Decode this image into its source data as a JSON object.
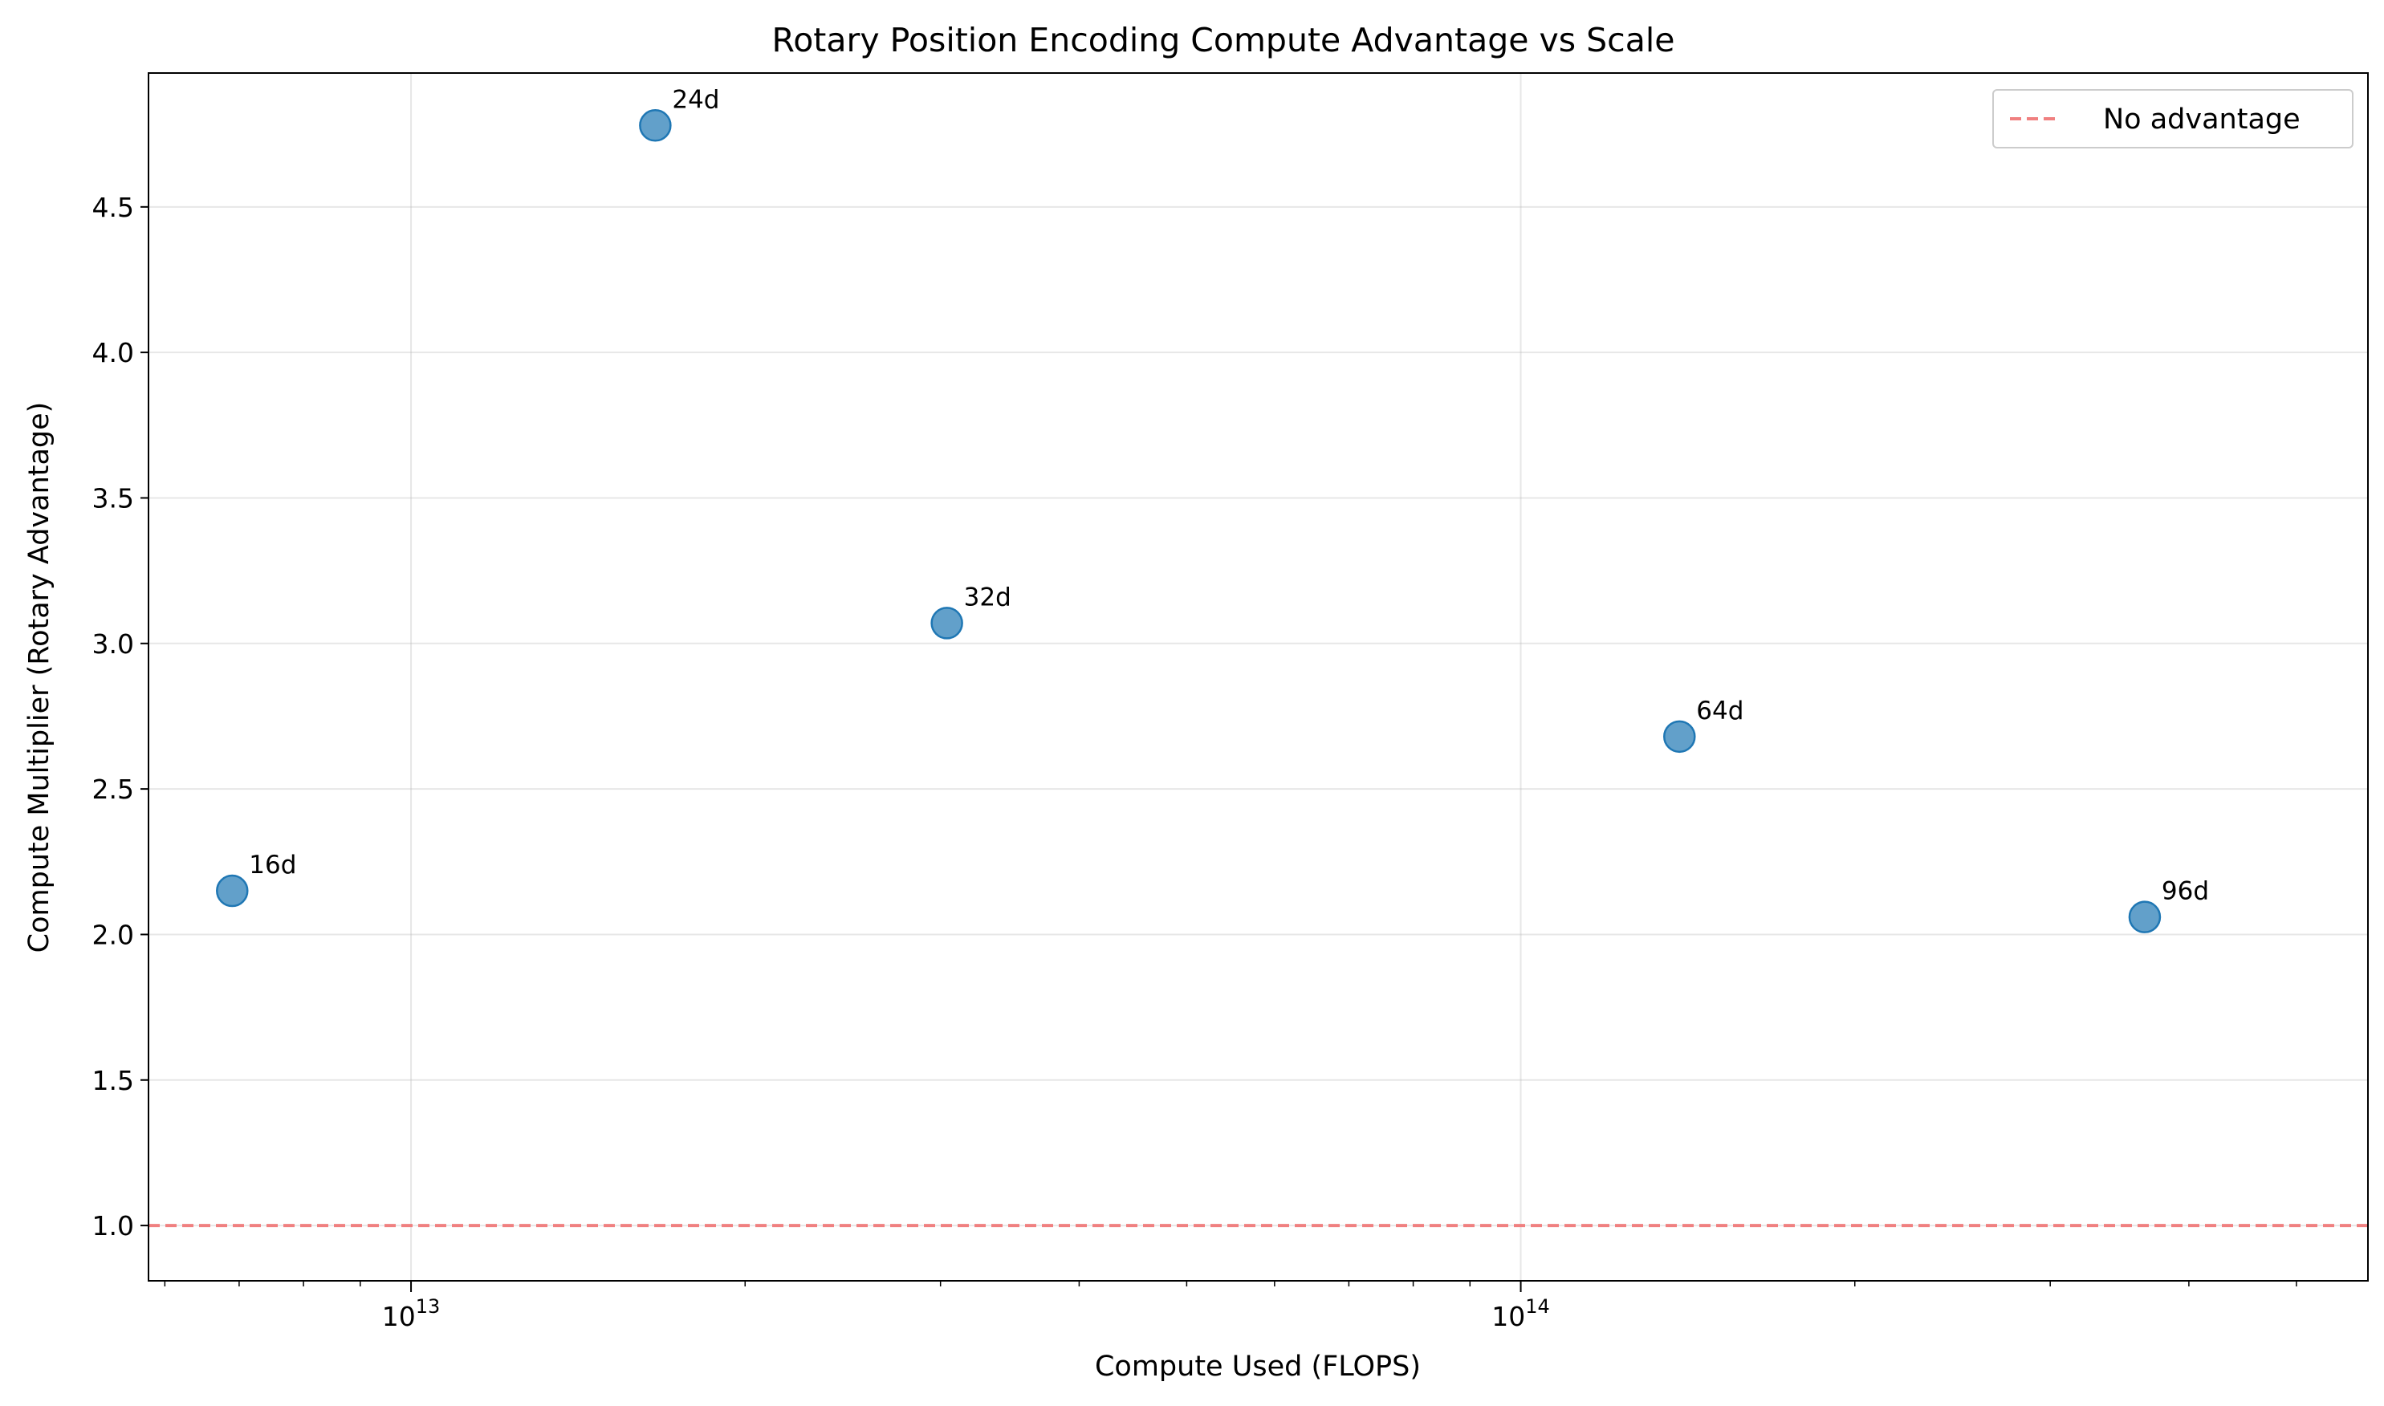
{
  "chart_data": {
    "type": "scatter",
    "title": "Rotary Position Encoding Compute Advantage vs Scale",
    "xlabel": "Compute Used (FLOPS)",
    "ylabel": "Compute Multiplier (Rotary Advantage)",
    "xscale": "log",
    "xlim": [
      5800000000000.0,
      580000000000000.0
    ],
    "ylim": [
      0.81,
      4.96
    ],
    "grid": true,
    "legend_position": "top-right",
    "x_ticks": [
      {
        "base": "10",
        "exp": "13",
        "value": 10000000000000.0
      },
      {
        "base": "10",
        "exp": "14",
        "value": 100000000000000.0
      }
    ],
    "y_ticks": [
      "1.0",
      "1.5",
      "2.0",
      "2.5",
      "3.0",
      "3.5",
      "4.0",
      "4.5"
    ],
    "points": [
      {
        "label": "16d",
        "x": 6900000000000.0,
        "y": 2.15
      },
      {
        "label": "24d",
        "x": 16600000000000.0,
        "y": 4.78
      },
      {
        "label": "32d",
        "x": 30400000000000.0,
        "y": 3.07
      },
      {
        "label": "64d",
        "x": 139000000000000.0,
        "y": 2.68
      },
      {
        "label": "96d",
        "x": 365000000000000.0,
        "y": 2.06
      }
    ],
    "reference_line": {
      "y": 1.0,
      "name": "No advantage",
      "style": "dashed",
      "color": "#f08080"
    },
    "point_color": "#1f77b4"
  }
}
